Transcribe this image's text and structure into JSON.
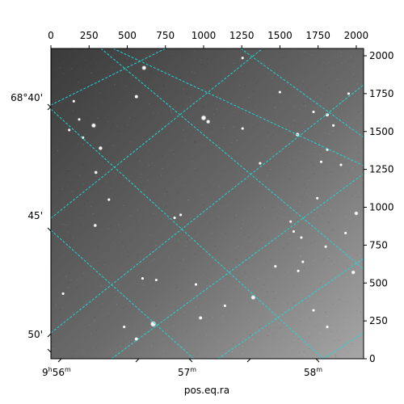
{
  "figure": {
    "xlabel": "pos.eq.ra",
    "top_axis": {
      "label_values": [
        0,
        250,
        500,
        750,
        1000,
        1250,
        1500,
        1750,
        2000
      ],
      "tick_labels": [
        "0",
        "250",
        "500",
        "750",
        "1000",
        "1250",
        "1500",
        "1750",
        "2000"
      ],
      "range": [
        0,
        2048
      ]
    },
    "right_axis": {
      "label_values": [
        0,
        250,
        500,
        750,
        1000,
        1250,
        1500,
        1750,
        2000
      ],
      "tick_labels": [
        "0",
        "250",
        "500",
        "750",
        "1000",
        "1250",
        "1500",
        "1750",
        "2000"
      ],
      "range": [
        0,
        2048
      ]
    },
    "left_axis": {
      "tick_labels": [
        "68°40'",
        "45'",
        "50'"
      ]
    },
    "bottom_axis": {
      "tick_labels": [
        {
          "base": "9",
          "sup1": "h",
          "mid": "56",
          "sup2": "m"
        },
        {
          "base": "57",
          "sup1": "m",
          "mid": "",
          "sup2": ""
        },
        {
          "base": "58",
          "sup1": "m",
          "mid": "",
          "sup2": ""
        }
      ]
    },
    "grid": {
      "visible": true,
      "color": "#1fd6d6",
      "style": "dashed"
    },
    "colors": {
      "sky_dark": "#3a3a3a",
      "sky_light": "#a6a6a6",
      "star": "#ffffff"
    },
    "stars": [
      {
        "x": 610,
        "y": 1920,
        "m": 3.0
      },
      {
        "x": 560,
        "y": 1730,
        "m": 1.5
      },
      {
        "x": 1000,
        "y": 1590,
        "m": 3.5
      },
      {
        "x": 1030,
        "y": 1565,
        "m": 2.5
      },
      {
        "x": 280,
        "y": 1540,
        "m": 3.0
      },
      {
        "x": 325,
        "y": 1390,
        "m": 2.5
      },
      {
        "x": 295,
        "y": 1230,
        "m": 2.0
      },
      {
        "x": 1615,
        "y": 1480,
        "m": 2.5
      },
      {
        "x": 1810,
        "y": 1610,
        "m": 1.5
      },
      {
        "x": 1255,
        "y": 1520,
        "m": 1.0
      },
      {
        "x": 1255,
        "y": 1985,
        "m": 1.0
      },
      {
        "x": 1500,
        "y": 1760,
        "m": 1.0
      },
      {
        "x": 2000,
        "y": 960,
        "m": 2.5
      },
      {
        "x": 1930,
        "y": 830,
        "m": 1.0
      },
      {
        "x": 290,
        "y": 880,
        "m": 2.0
      },
      {
        "x": 1325,
        "y": 405,
        "m": 3.0
      },
      {
        "x": 670,
        "y": 230,
        "m": 4.0
      },
      {
        "x": 1980,
        "y": 570,
        "m": 2.5
      },
      {
        "x": 1650,
        "y": 640,
        "m": 1.0
      },
      {
        "x": 1570,
        "y": 905,
        "m": 1.0
      },
      {
        "x": 1640,
        "y": 800,
        "m": 1.0
      },
      {
        "x": 1800,
        "y": 740,
        "m": 1.0
      },
      {
        "x": 1720,
        "y": 320,
        "m": 1.0
      },
      {
        "x": 1810,
        "y": 210,
        "m": 1.0
      },
      {
        "x": 950,
        "y": 490,
        "m": 1.0
      },
      {
        "x": 80,
        "y": 430,
        "m": 1.0
      },
      {
        "x": 185,
        "y": 1580,
        "m": 1.0
      },
      {
        "x": 210,
        "y": 1460,
        "m": 1.0
      },
      {
        "x": 120,
        "y": 1510,
        "m": 1.0
      },
      {
        "x": 810,
        "y": 930,
        "m": 1.0
      },
      {
        "x": 850,
        "y": 950,
        "m": 1.0
      },
      {
        "x": 1370,
        "y": 1290,
        "m": 1.0
      },
      {
        "x": 1720,
        "y": 1630,
        "m": 1.0
      },
      {
        "x": 1850,
        "y": 1540,
        "m": 1.0
      },
      {
        "x": 1810,
        "y": 1380,
        "m": 1.0
      },
      {
        "x": 1745,
        "y": 1060,
        "m": 1.0
      },
      {
        "x": 600,
        "y": 530,
        "m": 1.0
      },
      {
        "x": 690,
        "y": 520,
        "m": 1.0
      },
      {
        "x": 1140,
        "y": 350,
        "m": 1.0
      },
      {
        "x": 480,
        "y": 210,
        "m": 1.0
      },
      {
        "x": 560,
        "y": 130,
        "m": 1.5
      },
      {
        "x": 1590,
        "y": 840,
        "m": 1.0
      },
      {
        "x": 1470,
        "y": 610,
        "m": 1.0
      },
      {
        "x": 1620,
        "y": 580,
        "m": 1.0
      },
      {
        "x": 1950,
        "y": 1750,
        "m": 1.0
      },
      {
        "x": 980,
        "y": 270,
        "m": 1.5
      },
      {
        "x": 1770,
        "y": 1300,
        "m": 1.0
      },
      {
        "x": 380,
        "y": 1050,
        "m": 1.0
      },
      {
        "x": 150,
        "y": 1700,
        "m": 1.0
      },
      {
        "x": 1900,
        "y": 1280,
        "m": 1.0
      }
    ]
  }
}
